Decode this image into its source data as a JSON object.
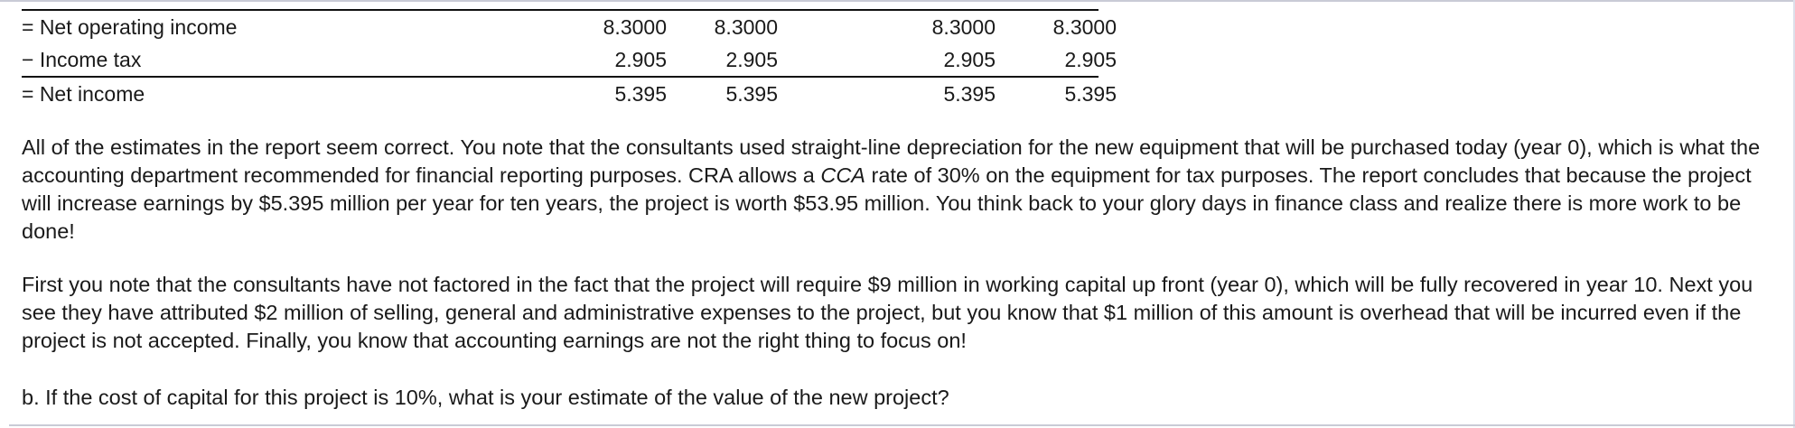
{
  "income_statement": {
    "rows": [
      {
        "label": "= Net operating income",
        "values": [
          "8.3000",
          "8.3000",
          "8.3000",
          "8.3000"
        ]
      },
      {
        "label": "− Income tax",
        "values": [
          "2.905",
          "2.905",
          "2.905",
          "2.905"
        ]
      },
      {
        "label": "= Net income",
        "values": [
          "5.395",
          "5.395",
          "5.395",
          "5.395"
        ]
      }
    ]
  },
  "text": {
    "paragraph1_before_cca": "All of the estimates in the report seem correct. You note that the consultants used straight-line depreciation for the new equipment that will be purchased today (year 0), which is what the accounting department recommended for financial reporting purposes. CRA allows a ",
    "paragraph1_cca": "CCA",
    "paragraph1_after_cca": " rate of 30% on the equipment for tax purposes. The report concludes that because the project will increase earnings by $5.395 million per year for ten years, the project is worth $53.95 million. You think back to your glory days in finance class and realize there is more work to be done!",
    "paragraph2": "First you note that the consultants have not factored in the fact that the project will require $9 million in working capital up front (year 0), which will be fully recovered in year 10. Next you see they have attributed $2 million of selling, general and administrative expenses to the project, but you know that $1 million of this amount is overhead that will be incurred even if the project is not accepted. Finally, you know that accounting earnings are not the right thing to focus on!",
    "question_b": "b. If the cost of capital for this project is 10%, what is your estimate of the value of the new project?"
  }
}
